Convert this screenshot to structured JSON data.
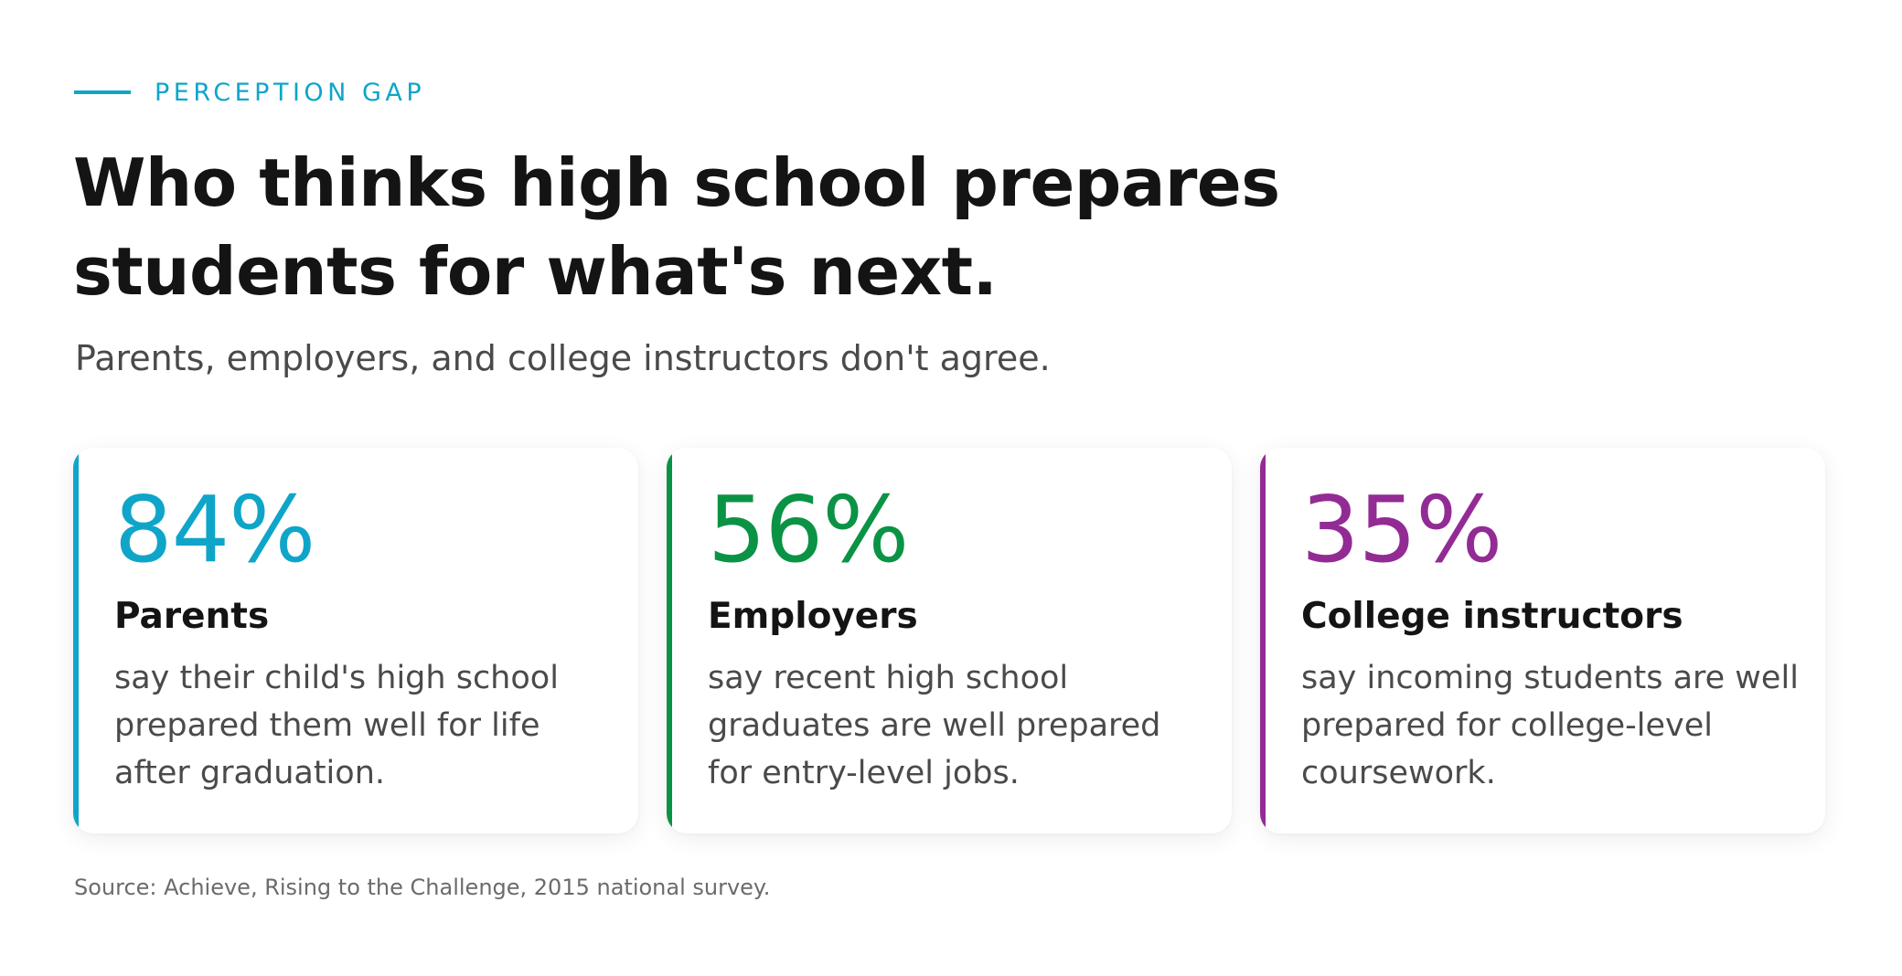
{
  "header": {
    "eyebrow": "PERCEPTION GAP",
    "title": "Who thinks high school prepares students for what's next.",
    "subtitle": "Parents, employers, and college instructors don't agree."
  },
  "cards": [
    {
      "stat": "84%",
      "group": "Parents",
      "description": "say their child's high school prepared them well for life after graduation.",
      "accent_color": "#0fa5c9"
    },
    {
      "stat": "56%",
      "group": "Employers",
      "description": "say recent high school graduates are well prepared for entry-level jobs.",
      "accent_color": "#0a9345"
    },
    {
      "stat": "35%",
      "group": "College instructors",
      "description": "say incoming students are well prepared for college-level coursework.",
      "accent_color": "#932b95"
    }
  ],
  "footer": {
    "source": "Source: Achieve, Rising to the Challenge, 2015 national survey."
  },
  "colors": {
    "eyebrow": "#0fa5c9",
    "title": "#141414",
    "body_text": "#4a4a4a",
    "source_text": "#6b6b6b"
  }
}
